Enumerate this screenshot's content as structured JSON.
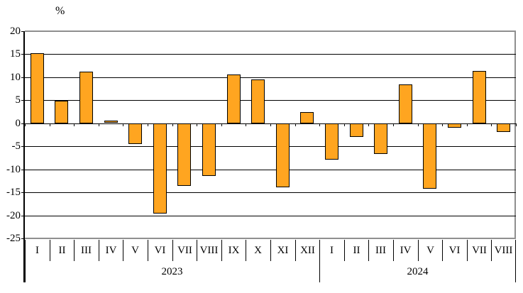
{
  "chart_data": {
    "type": "bar",
    "title": "",
    "ylabel": "%",
    "xlabel": "",
    "ylim": [
      -25,
      20
    ],
    "yticks": [
      20,
      15,
      10,
      5,
      0,
      -5,
      -10,
      -15,
      -20,
      -25
    ],
    "grid": true,
    "legend": false,
    "bar_color": "#FFA520",
    "bar_border_color": "#000000",
    "plot_border_color": "#8f8f8f",
    "groups": [
      {
        "year": "2023",
        "categories": [
          "I",
          "II",
          "III",
          "IV",
          "V",
          "VI",
          "VII",
          "VIII",
          "IX",
          "X",
          "XI",
          "XII"
        ],
        "values": [
          15.0,
          4.7,
          11.0,
          0.3,
          -4.2,
          -19.3,
          -13.3,
          -11.2,
          10.4,
          9.3,
          -13.7,
          2.2
        ]
      },
      {
        "year": "2024",
        "categories": [
          "I",
          "II",
          "III",
          "IV",
          "V",
          "VI",
          "VII",
          "VIII"
        ],
        "values": [
          -7.6,
          -2.7,
          -6.4,
          8.2,
          -14.0,
          -0.7,
          11.2,
          -1.6
        ]
      }
    ]
  }
}
